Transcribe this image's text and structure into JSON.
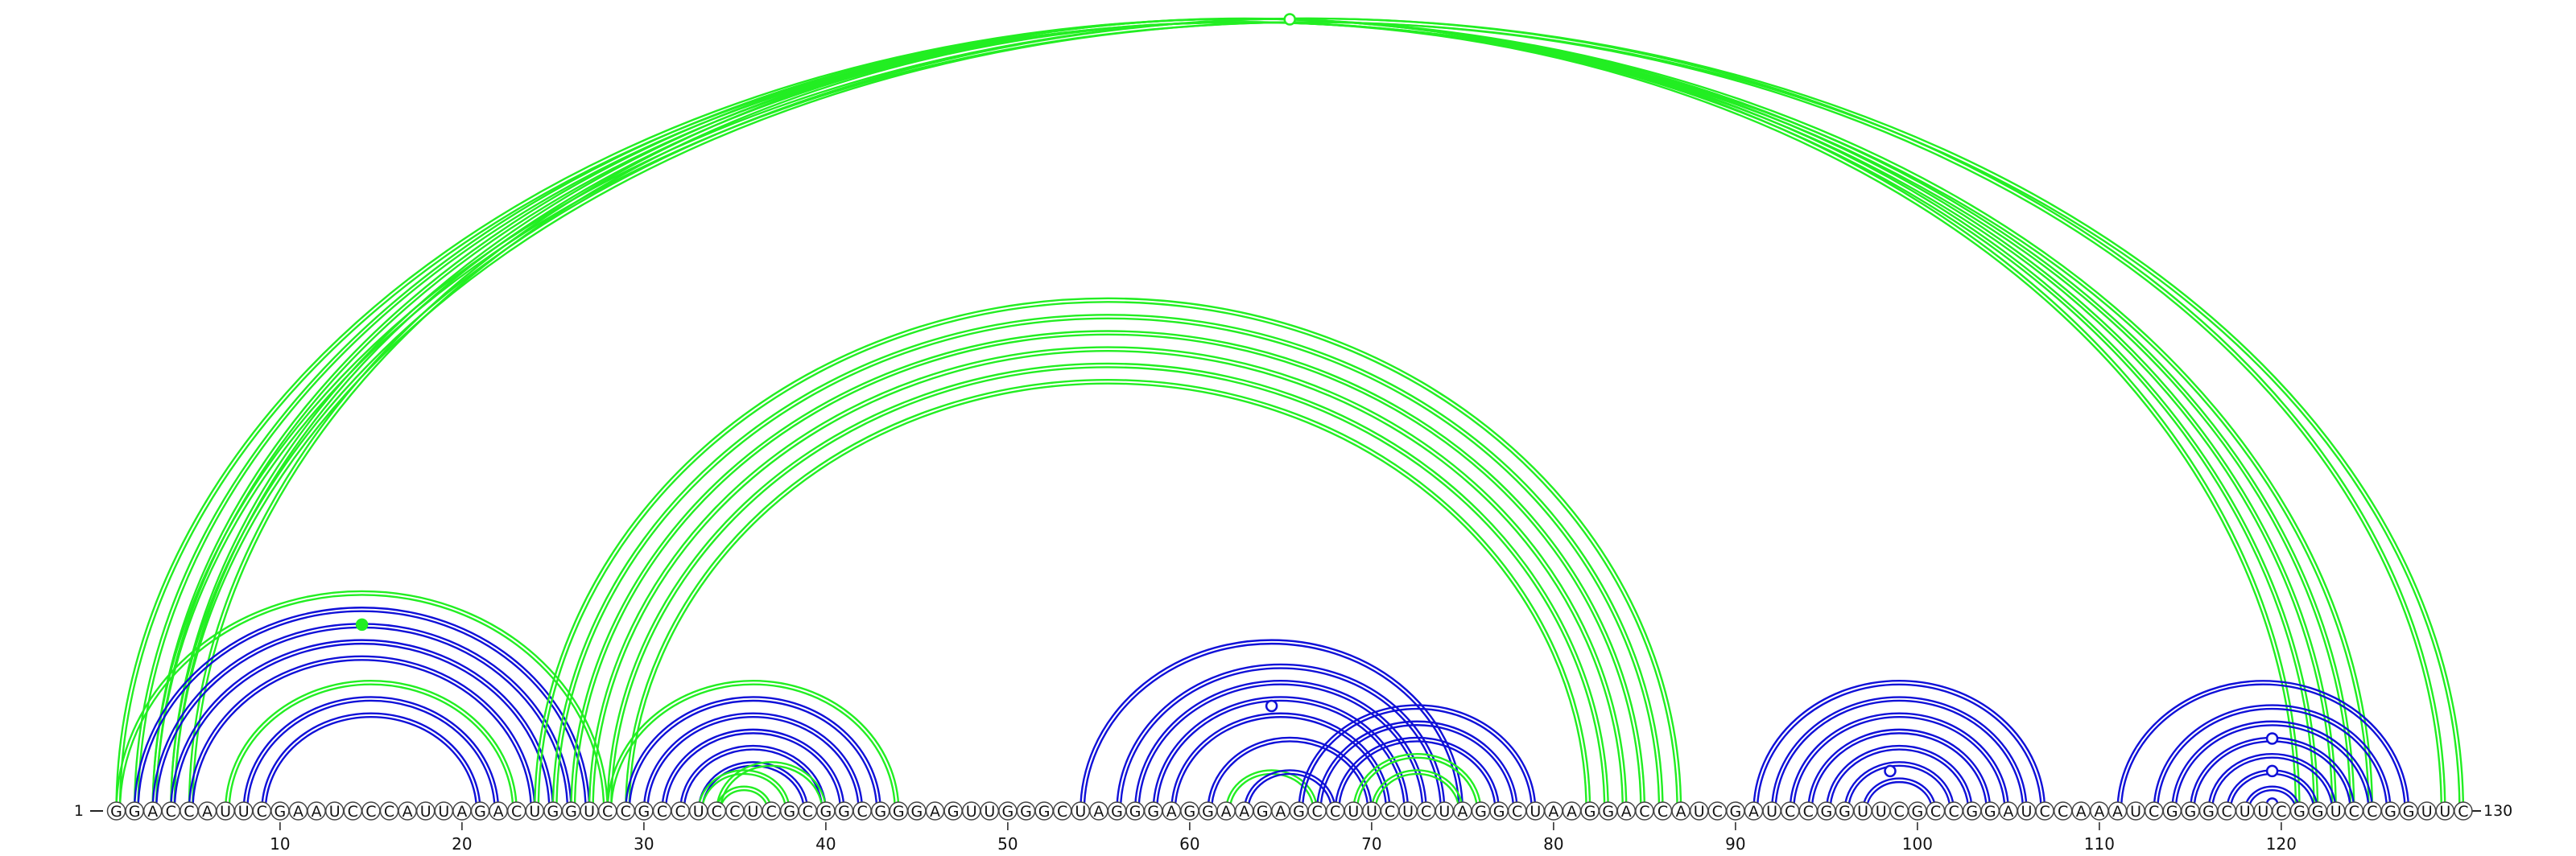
{
  "sequence": "GGACCAUUCGAAUCCCAUUAGACUGGUCCGCCUCCUCGCGGCGGGAGUUGGGCUAGGGAGGAAGAGCCUUCUCUAGGCUAAGGACCAUCGAUCCGGUUCGCCGGAUCCAAAUCGGGCUUCGGUCCGGUUC",
  "start_label": "1",
  "end_label": "130",
  "ticks": [
    "10",
    "20",
    "30",
    "40",
    "50",
    "60",
    "70",
    "80",
    "90",
    "100",
    "110",
    "120"
  ],
  "colors": {
    "blue": "#1010d8",
    "green": "#22ee22",
    "circle_stroke": "#444444"
  },
  "arcs": [
    {
      "i": 1,
      "j": 125,
      "color": "green"
    },
    {
      "i": 2,
      "j": 124,
      "color": "green"
    },
    {
      "i": 3,
      "j": 123,
      "color": "green"
    },
    {
      "i": 4,
      "j": 122,
      "color": "green"
    },
    {
      "i": 5,
      "j": 121,
      "color": "green"
    },
    {
      "i": 3,
      "j": 130,
      "color": "green"
    },
    {
      "i": 4,
      "j": 129,
      "color": "green"
    },
    {
      "i": 1,
      "j": 28,
      "color": "green"
    },
    {
      "i": 2,
      "j": 27,
      "color": "blue"
    },
    {
      "i": 3,
      "j": 26,
      "color": "blue"
    },
    {
      "i": 4,
      "j": 25,
      "color": "blue"
    },
    {
      "i": 5,
      "j": 24,
      "color": "blue"
    },
    {
      "i": 7,
      "j": 23,
      "color": "green"
    },
    {
      "i": 8,
      "j": 22,
      "color": "blue"
    },
    {
      "i": 9,
      "j": 21,
      "color": "blue"
    },
    {
      "i": 24,
      "j": 87,
      "color": "green"
    },
    {
      "i": 25,
      "j": 86,
      "color": "green"
    },
    {
      "i": 26,
      "j": 85,
      "color": "green"
    },
    {
      "i": 27,
      "j": 84,
      "color": "green"
    },
    {
      "i": 28,
      "j": 83,
      "color": "green"
    },
    {
      "i": 29,
      "j": 82,
      "color": "green"
    },
    {
      "i": 28,
      "j": 44,
      "color": "green"
    },
    {
      "i": 29,
      "j": 43,
      "color": "blue"
    },
    {
      "i": 30,
      "j": 42,
      "color": "blue"
    },
    {
      "i": 31,
      "j": 41,
      "color": "blue"
    },
    {
      "i": 32,
      "j": 40,
      "color": "blue"
    },
    {
      "i": 33,
      "j": 39,
      "color": "blue"
    },
    {
      "i": 33,
      "j": 38,
      "color": "green"
    },
    {
      "i": 34,
      "j": 37,
      "color": "green"
    },
    {
      "i": 34,
      "j": 40,
      "color": "green"
    },
    {
      "i": 54,
      "j": 75,
      "color": "blue"
    },
    {
      "i": 56,
      "j": 74,
      "color": "blue"
    },
    {
      "i": 57,
      "j": 73,
      "color": "blue"
    },
    {
      "i": 58,
      "j": 72,
      "color": "blue"
    },
    {
      "i": 59,
      "j": 71,
      "color": "blue"
    },
    {
      "i": 61,
      "j": 70,
      "color": "blue"
    },
    {
      "i": 62,
      "j": 67,
      "color": "green"
    },
    {
      "i": 63,
      "j": 68,
      "color": "blue"
    },
    {
      "i": 66,
      "j": 79,
      "color": "blue"
    },
    {
      "i": 67,
      "j": 78,
      "color": "blue"
    },
    {
      "i": 68,
      "j": 77,
      "color": "blue"
    },
    {
      "i": 69,
      "j": 76,
      "color": "green"
    },
    {
      "i": 70,
      "j": 75,
      "color": "green"
    },
    {
      "i": 91,
      "j": 107,
      "color": "blue"
    },
    {
      "i": 92,
      "j": 106,
      "color": "blue"
    },
    {
      "i": 93,
      "j": 105,
      "color": "blue"
    },
    {
      "i": 94,
      "j": 104,
      "color": "blue"
    },
    {
      "i": 95,
      "j": 103,
      "color": "blue"
    },
    {
      "i": 96,
      "j": 102,
      "color": "blue"
    },
    {
      "i": 97,
      "j": 101,
      "color": "blue"
    },
    {
      "i": 111,
      "j": 127,
      "color": "blue"
    },
    {
      "i": 113,
      "j": 126,
      "color": "blue"
    },
    {
      "i": 114,
      "j": 125,
      "color": "blue"
    },
    {
      "i": 115,
      "j": 124,
      "color": "blue"
    },
    {
      "i": 116,
      "j": 123,
      "color": "blue"
    },
    {
      "i": 117,
      "j": 122,
      "color": "blue"
    },
    {
      "i": 118,
      "j": 121,
      "color": "blue"
    }
  ],
  "markers": [
    {
      "i": 1,
      "j": 130,
      "color": "green",
      "filled": false
    },
    {
      "i": 3,
      "j": 26,
      "color": "green",
      "filled": true
    },
    {
      "i": 58,
      "j": 71,
      "color": "blue",
      "filled": false
    },
    {
      "i": 96,
      "j": 101,
      "color": "blue",
      "filled": false
    },
    {
      "i": 115,
      "j": 124,
      "color": "blue",
      "filled": false
    },
    {
      "i": 117,
      "j": 122,
      "color": "blue",
      "filled": false
    },
    {
      "i": 119,
      "j": 120,
      "color": "blue",
      "filled": false
    }
  ]
}
